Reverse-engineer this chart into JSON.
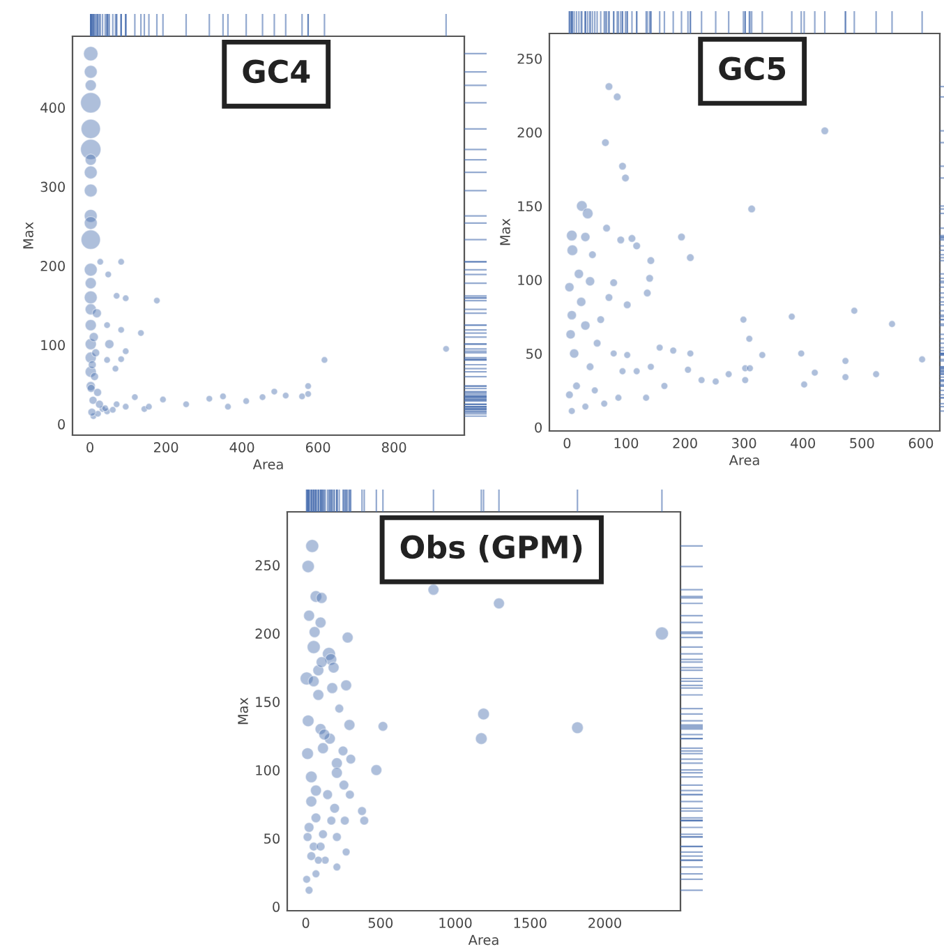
{
  "chart_data": [
    {
      "type": "bubble",
      "title": "GC4",
      "xlabel": "Area",
      "ylabel": "Max",
      "color": "#4c72b0",
      "grid": false,
      "xlim": [
        -46,
        985
      ],
      "ylim": [
        -14,
        490
      ],
      "xticks": [
        0,
        200,
        400,
        600,
        800
      ],
      "yticks": [
        0,
        100,
        200,
        300,
        400
      ],
      "x": [
        2,
        2,
        2,
        2,
        2,
        2,
        2,
        2,
        2,
        2,
        2,
        2,
        2,
        2,
        2,
        2,
        2,
        2,
        2,
        2,
        2,
        27,
        48,
        82,
        70,
        94,
        176,
        134,
        82,
        45,
        51,
        82,
        45,
        67,
        94,
        33,
        70,
        118,
        143,
        192,
        253,
        314,
        350,
        363,
        411,
        454,
        485,
        515,
        558,
        574,
        574,
        617,
        937,
        9,
        21,
        45,
        94,
        155,
        5,
        8,
        3,
        12,
        6,
        15,
        20,
        25,
        40,
        60,
        10,
        18
      ],
      "values": [
        468,
        445,
        428,
        406,
        373,
        347,
        334,
        318,
        295,
        263,
        254,
        233,
        195,
        178,
        160,
        145,
        125,
        101,
        84,
        66,
        48,
        205,
        189,
        205,
        162,
        159,
        156,
        115,
        119,
        125,
        101,
        82,
        81,
        70,
        92,
        19,
        25,
        34,
        19,
        31,
        25,
        32,
        35,
        22,
        29,
        34,
        41,
        36,
        35,
        38,
        48,
        81,
        95,
        10,
        13,
        16,
        22,
        22,
        15,
        30,
        45,
        60,
        75,
        90,
        40,
        25,
        20,
        18,
        110,
        140
      ],
      "sizes": [
        0.5,
        0.4,
        0.3,
        1,
        0.9,
        1,
        0.3,
        0.4,
        0.4,
        0.4,
        0.4,
        0.9,
        0.4,
        0.3,
        0.4,
        0.3,
        0.3,
        0.3,
        0.3,
        0.3,
        0.2,
        0.1,
        0.1,
        0.1,
        0.1,
        0.1,
        0.1,
        0.1,
        0.1,
        0.1,
        0.2,
        0.1,
        0.1,
        0.1,
        0.1,
        0.1,
        0.1,
        0.1,
        0.1,
        0.1,
        0.1,
        0.1,
        0.1,
        0.1,
        0.1,
        0.1,
        0.1,
        0.1,
        0.1,
        0.1,
        0.1,
        0.1,
        0.1,
        0.1,
        0.1,
        0.1,
        0.1,
        0.1,
        0.15,
        0.15,
        0.15,
        0.15,
        0.15,
        0.15,
        0.15,
        0.15,
        0.1,
        0.1,
        0.2,
        0.2
      ]
    },
    {
      "type": "bubble",
      "title": "GC5",
      "xlabel": "Area",
      "ylabel": "Max",
      "color": "#4c72b0",
      "grid": false,
      "xlim": [
        -30,
        632
      ],
      "ylim": [
        -2.5,
        267
      ],
      "xticks": [
        0,
        100,
        200,
        300,
        400,
        500,
        600
      ],
      "yticks": [
        0,
        50,
        100,
        150,
        200,
        250
      ],
      "x": [
        71,
        85,
        65,
        94,
        99,
        437,
        313,
        25,
        35,
        67,
        8,
        31,
        9,
        194,
        209,
        91,
        110,
        118,
        142,
        140,
        136,
        20,
        39,
        79,
        43,
        8,
        31,
        57,
        71,
        102,
        299,
        381,
        487,
        551,
        309,
        602,
        472,
        472,
        524,
        420,
        402,
        397,
        331,
        302,
        310,
        302,
        274,
        252,
        228,
        205,
        209,
        180,
        157,
        142,
        165,
        134,
        87,
        63,
        31,
        8,
        4,
        16,
        39,
        79,
        102,
        94,
        47,
        12,
        6,
        24,
        4,
        51,
        118
      ],
      "values": [
        231,
        224,
        193,
        177,
        169,
        201,
        148,
        150,
        145,
        135,
        130,
        129,
        120,
        129,
        115,
        127,
        128,
        123,
        113,
        101,
        91,
        104,
        99,
        98,
        117,
        76,
        69,
        73,
        88,
        83,
        73,
        75,
        79,
        70,
        60,
        46,
        45,
        34,
        36,
        37,
        29,
        50,
        49,
        40,
        40,
        32,
        36,
        31,
        32,
        39,
        50,
        52,
        54,
        41,
        28,
        20,
        20,
        16,
        14,
        11,
        22,
        28,
        41,
        50,
        49,
        38,
        25,
        50,
        63,
        85,
        95,
        57,
        38
      ],
      "sizes": [
        0.5,
        0.5,
        0.5,
        0.5,
        0.5,
        0.5,
        0.5,
        1,
        1,
        0.5,
        1,
        0.75,
        1,
        0.5,
        0.5,
        0.5,
        0.5,
        0.5,
        0.5,
        0.5,
        0.5,
        0.75,
        0.75,
        0.5,
        0.5,
        0.75,
        0.75,
        0.5,
        0.5,
        0.5,
        0.4,
        0.4,
        0.4,
        0.4,
        0.4,
        0.4,
        0.4,
        0.4,
        0.4,
        0.4,
        0.4,
        0.4,
        0.4,
        0.4,
        0.4,
        0.4,
        0.4,
        0.4,
        0.4,
        0.4,
        0.4,
        0.4,
        0.4,
        0.4,
        0.4,
        0.4,
        0.4,
        0.4,
        0.4,
        0.4,
        0.5,
        0.5,
        0.5,
        0.4,
        0.4,
        0.4,
        0.4,
        0.75,
        0.75,
        0.75,
        0.75,
        0.5,
        0.4
      ]
    },
    {
      "type": "bubble",
      "title": "Obs (GPM)",
      "xlabel": "Area",
      "ylabel": "Max",
      "color": "#4c72b0",
      "grid": false,
      "xlim": [
        -124,
        2506
      ],
      "ylim": [
        -3,
        289
      ],
      "xticks": [
        0,
        500,
        1000,
        1500,
        2000
      ],
      "yticks": [
        0,
        50,
        100,
        150,
        200,
        250
      ],
      "x": [
        43,
        16,
        68,
        106,
        22,
        99,
        59,
        53,
        155,
        168,
        186,
        280,
        270,
        84,
        106,
        6,
        53,
        84,
        177,
        224,
        292,
        16,
        99,
        161,
        124,
        115,
        12,
        249,
        301,
        208,
        208,
        37,
        472,
        516,
        1174,
        1189,
        1817,
        2382,
        1292,
        854,
        68,
        255,
        295,
        146,
        37,
        193,
        376,
        391,
        261,
        171,
        68,
        22,
        115,
        208,
        270,
        208,
        130,
        53,
        6,
        22,
        68,
        37,
        99,
        12,
        84
      ],
      "values": [
        264,
        249,
        227,
        226,
        213,
        208,
        201,
        190,
        185,
        181,
        175,
        197,
        162,
        173,
        179,
        167,
        165,
        155,
        160,
        145,
        133,
        136,
        130,
        123,
        126,
        116,
        112,
        114,
        108,
        105,
        98,
        95,
        100,
        132,
        123,
        141,
        131,
        200,
        222,
        232,
        85,
        89,
        82,
        82,
        77,
        72,
        70,
        63,
        63,
        63,
        65,
        58,
        53,
        51,
        40,
        29,
        34,
        44,
        20,
        12,
        24,
        37,
        44,
        51,
        34
      ],
      "sizes": [
        1,
        0.9,
        0.8,
        0.7,
        0.7,
        0.7,
        0.7,
        1,
        1,
        0.8,
        0.7,
        0.7,
        0.7,
        0.7,
        0.7,
        1,
        0.7,
        0.7,
        0.7,
        0.45,
        0.7,
        0.8,
        0.7,
        0.7,
        0.7,
        0.7,
        0.8,
        0.55,
        0.55,
        0.7,
        0.7,
        0.8,
        0.7,
        0.55,
        0.8,
        0.8,
        0.8,
        1,
        0.7,
        0.7,
        0.7,
        0.55,
        0.45,
        0.55,
        0.7,
        0.55,
        0.45,
        0.45,
        0.45,
        0.45,
        0.55,
        0.55,
        0.45,
        0.45,
        0.35,
        0.35,
        0.35,
        0.45,
        0.35,
        0.35,
        0.35,
        0.45,
        0.45,
        0.45,
        0.35
      ]
    }
  ]
}
